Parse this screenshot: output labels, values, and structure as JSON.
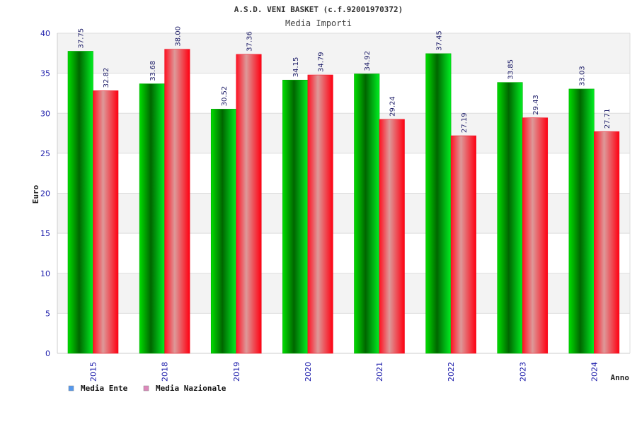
{
  "chart_data": {
    "type": "bar",
    "title": "A.S.D. VENI BASKET (c.f.92001970372)",
    "subtitle": "Media Importi",
    "xlabel": "Anno",
    "ylabel": "Euro",
    "ylim": [
      0,
      40
    ],
    "yticks": [
      0,
      5,
      10,
      15,
      20,
      25,
      30,
      35,
      40
    ],
    "categories": [
      "2015",
      "2018",
      "2019",
      "2020",
      "2021",
      "2022",
      "2023",
      "2024"
    ],
    "series": [
      {
        "name": "Media Ente",
        "values": [
          37.75,
          33.68,
          30.52,
          34.15,
          34.92,
          37.45,
          33.85,
          33.03
        ],
        "labels": [
          "37.75",
          "33.68",
          "30.52",
          "34.15",
          "34.92",
          "37.45",
          "33.85",
          "33.03"
        ],
        "color": "#00aa00",
        "legend_color": "#5599ee"
      },
      {
        "name": "Media Nazionale",
        "values": [
          32.82,
          38.0,
          37.36,
          34.79,
          29.24,
          27.19,
          29.43,
          27.71
        ],
        "labels": [
          "32.82",
          "38.00",
          "37.36",
          "34.79",
          "29.24",
          "27.19",
          "29.43",
          "27.71"
        ],
        "color": "#ee1122",
        "legend_color": "#dd88bb"
      }
    ],
    "grid": true,
    "legend_position": "bottom-left"
  }
}
